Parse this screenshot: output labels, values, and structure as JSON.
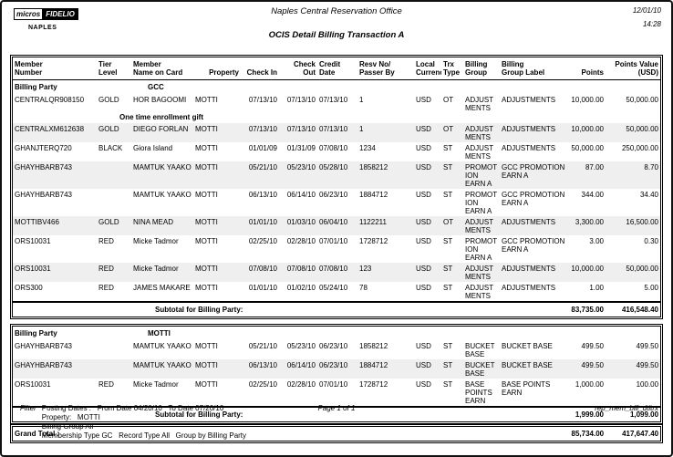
{
  "header": {
    "brand_primary": "micros",
    "brand_secondary": "FIDELIO",
    "property_code": "NAPLES",
    "office_title": "Naples Central Reservation Office",
    "report_title": "OCIS Detail Billing Transaction A",
    "date": "12/01/10",
    "time": "14:28"
  },
  "table": {
    "columns": [
      "Member\nNumber",
      "Tier\nLevel",
      "Member\nName on Card",
      "Property",
      "Check In",
      "Check Out",
      "Credit\nDate",
      "Resv No/\nPasser By",
      "Local\nCurrency",
      "Trx\nType",
      "Billing\nGroup",
      "Billing\nGroup Label",
      "Points",
      "Points Value\n(USD)"
    ],
    "billing_party_label": "Billing Party",
    "subtotal_label": "Subtotal for Billing Party:",
    "grand_total_label": "Grand Total :",
    "sections": [
      {
        "billing_party": "GCC",
        "rows": [
          {
            "cells": [
              "CENTRALQR908150",
              "GOLD",
              "HOR BAGOOMI",
              "MOTTI",
              "07/13/10",
              "07/13/10",
              "07/13/10",
              "1",
              "USD",
              "OT",
              "ADJUST\nMENTS",
              "ADJUSTMENTS",
              "10,000.00",
              "50,000.00"
            ],
            "note": "One time enrollment gift"
          },
          {
            "cells": [
              "CENTRALXM612638",
              "GOLD",
              "DIEGO FORLAN",
              "MOTTI",
              "07/13/10",
              "07/13/10",
              "07/13/10",
              "1",
              "USD",
              "OT",
              "ADJUST\nMENTS",
              "ADJUSTMENTS",
              "10,000.00",
              "50,000.00"
            ]
          },
          {
            "cells": [
              "GHANJTERQ720",
              "BLACK",
              "Giora Island",
              "MOTTI",
              "01/01/09",
              "01/31/09",
              "07/08/10",
              "1234",
              "USD",
              "ST",
              "ADJUST\nMENTS",
              "ADJUSTMENTS",
              "50,000.00",
              "250,000.00"
            ]
          },
          {
            "cells": [
              "GHAYHBARB743",
              "",
              "MAMTUK YAAKO",
              "MOTTI",
              "05/21/10",
              "05/23/10",
              "05/28/10",
              "1858212",
              "USD",
              "ST",
              "PROMOT\nION\nEARN A",
              "GCC PROMOTION\nEARN A",
              "87.00",
              "8.70"
            ]
          },
          {
            "cells": [
              "GHAYHBARB743",
              "",
              "MAMTUK YAAKO",
              "MOTTI",
              "06/13/10",
              "06/14/10",
              "06/23/10",
              "1884712",
              "USD",
              "ST",
              "PROMOT\nION\nEARN A",
              "GCC PROMOTION\nEARN A",
              "344.00",
              "34.40"
            ]
          },
          {
            "cells": [
              "MOTTIBV466",
              "GOLD",
              "NINA MEAD",
              "MOTTI",
              "01/01/10",
              "01/03/10",
              "06/04/10",
              "1122211",
              "USD",
              "OT",
              "ADJUST\nMENTS",
              "ADJUSTMENTS",
              "3,300.00",
              "16,500.00"
            ]
          },
          {
            "cells": [
              "ORS10031",
              "RED",
              "Micke Tadmor",
              "MOTTI",
              "02/25/10",
              "02/28/10",
              "07/01/10",
              "1728712",
              "USD",
              "ST",
              "PROMOT\nION\nEARN A",
              "GCC PROMOTION\nEARN A",
              "3.00",
              "0.30"
            ]
          },
          {
            "cells": [
              "ORS10031",
              "RED",
              "Micke Tadmor",
              "MOTTI",
              "07/08/10",
              "07/08/10",
              "07/08/10",
              "123",
              "USD",
              "ST",
              "ADJUST\nMENTS",
              "ADJUSTMENTS",
              "10,000.00",
              "50,000.00"
            ]
          },
          {
            "cells": [
              "ORS300",
              "RED",
              "JAMES MAKARE",
              "MOTTI",
              "01/01/10",
              "01/02/10",
              "05/24/10",
              "78",
              "USD",
              "ST",
              "ADJUST\nMENTS",
              "ADJUSTMENTS",
              "1.00",
              "5.00"
            ]
          }
        ],
        "subtotal": {
          "points": "83,735.00",
          "points_value": "416,548.40"
        }
      },
      {
        "billing_party": "MOTTI",
        "rows": [
          {
            "cells": [
              "GHAYHBARB743",
              "",
              "MAMTUK YAAKO",
              "MOTTI",
              "05/21/10",
              "05/23/10",
              "06/23/10",
              "1858212",
              "USD",
              "ST",
              "BUCKET\nBASE",
              "BUCKET BASE",
              "499.50",
              "499.50"
            ]
          },
          {
            "cells": [
              "GHAYHBARB743",
              "",
              "MAMTUK YAAKO",
              "MOTTI",
              "06/13/10",
              "06/14/10",
              "06/23/10",
              "1884712",
              "USD",
              "ST",
              "BUCKET\nBASE",
              "BUCKET BASE",
              "499.50",
              "499.50"
            ]
          },
          {
            "cells": [
              "ORS10031",
              "RED",
              "Micke Tadmor",
              "MOTTI",
              "02/25/10",
              "02/28/10",
              "07/01/10",
              "1728712",
              "USD",
              "ST",
              "BASE\nPOINTS\nEARN",
              "BASE POINTS\nEARN",
              "1,000.00",
              "100.00"
            ]
          }
        ],
        "subtotal": {
          "points": "1,999.00",
          "points_value": "1,099.00"
        }
      }
    ],
    "grand_total": {
      "points": "85,734.00",
      "points_value": "417,647.40"
    }
  },
  "footer": {
    "filter_label": "Filter",
    "filter_lines": [
      "Posting Dates :   From Date 04/20/10   To Date 07/20/10",
      "Property:   MOTTI",
      "Billing Group All",
      "Membership Type GC   Record Type All   Group by Billing Party"
    ],
    "page_label": "Page 1 of 1",
    "report_file": "rep_mem_bill_dtltrx"
  }
}
